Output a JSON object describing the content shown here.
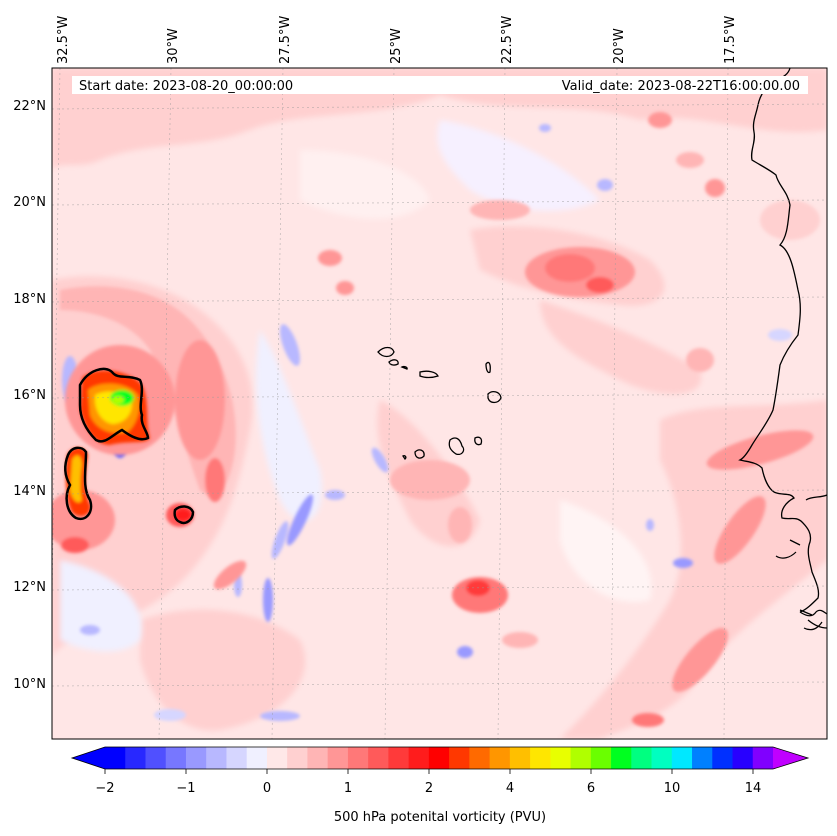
{
  "map": {
    "header": {
      "start_date": "Start date: 2023-08-20_00:00:00",
      "valid_date": "Valid_date: 2023-08-22T16:00:00.00"
    },
    "longitude_labels": [
      "32.5°W",
      "30°W",
      "27.5°W",
      "25°W",
      "22.5°W",
      "20°W",
      "17.5°W"
    ],
    "latitude_labels": [
      "22°N",
      "20°N",
      "18°N",
      "16°N",
      "14°N",
      "12°N",
      "10°N"
    ],
    "colorbar": {
      "label": "500 hPa potenital vorticity (PVU)",
      "ticks": [
        "−2",
        "−1",
        "0",
        "1",
        "2",
        "4",
        "6",
        "10",
        "14"
      ],
      "colors": [
        "#0000ff",
        "#2828ff",
        "#5050ff",
        "#7777ff",
        "#9999ff",
        "#b8b8ff",
        "#d6d6ff",
        "#f0f0ff",
        "#ffe8e8",
        "#ffd0d0",
        "#ffb5b5",
        "#ff9696",
        "#ff7878",
        "#ff5a5a",
        "#ff3a3a",
        "#ff1c1c",
        "#ff0000",
        "#ff3800",
        "#ff6a00",
        "#ff9600",
        "#ffbf00",
        "#ffe600",
        "#e8ff00",
        "#b0ff00",
        "#6aff00",
        "#00ff20",
        "#00ff80",
        "#00ffc0",
        "#00e8ff",
        "#0080ff",
        "#0030ff",
        "#2800ff",
        "#8000ff"
      ],
      "extend_low_color": "#0000ff",
      "extend_high_color": "#c000ff"
    },
    "colors": {
      "background_field": "#ffe6e6",
      "coastline": "#000000",
      "pv_contour": "#000000"
    }
  }
}
